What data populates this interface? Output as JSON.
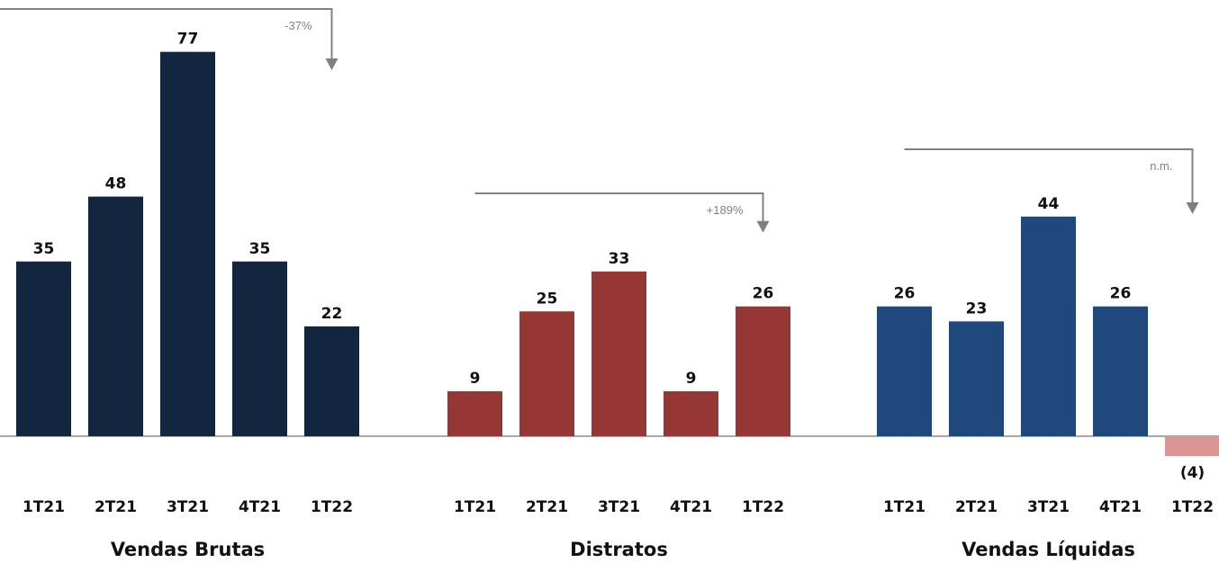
{
  "chart_data": [
    {
      "type": "bar",
      "title": "Vendas Brutas",
      "categories": [
        "1T21",
        "2T21",
        "3T21",
        "4T21",
        "1T22"
      ],
      "values": [
        35,
        48,
        77,
        35,
        22
      ],
      "value_labels": [
        "35",
        "48",
        "77",
        "35",
        "22"
      ],
      "colors": [
        "#13263f",
        "#13263f",
        "#13263f",
        "#13263f",
        "#13263f"
      ],
      "annotation": "-37%"
    },
    {
      "type": "bar",
      "title": "Distratos",
      "categories": [
        "1T21",
        "2T21",
        "3T21",
        "4T21",
        "1T22"
      ],
      "values": [
        9,
        25,
        33,
        9,
        26
      ],
      "value_labels": [
        "9",
        "25",
        "33",
        "9",
        "26"
      ],
      "colors": [
        "#953735",
        "#953735",
        "#953735",
        "#953735",
        "#953735"
      ],
      "annotation": "+189%"
    },
    {
      "type": "bar",
      "title": "Vendas Líquidas",
      "categories": [
        "1T21",
        "2T21",
        "3T21",
        "4T21",
        "1T22"
      ],
      "values": [
        26,
        23,
        44,
        26,
        -4
      ],
      "value_labels": [
        "26",
        "23",
        "44",
        "26",
        "(4)"
      ],
      "colors": [
        "#1f497d",
        "#1f497d",
        "#1f497d",
        "#1f497d",
        "#d99694"
      ],
      "annotation": "n.m."
    }
  ]
}
